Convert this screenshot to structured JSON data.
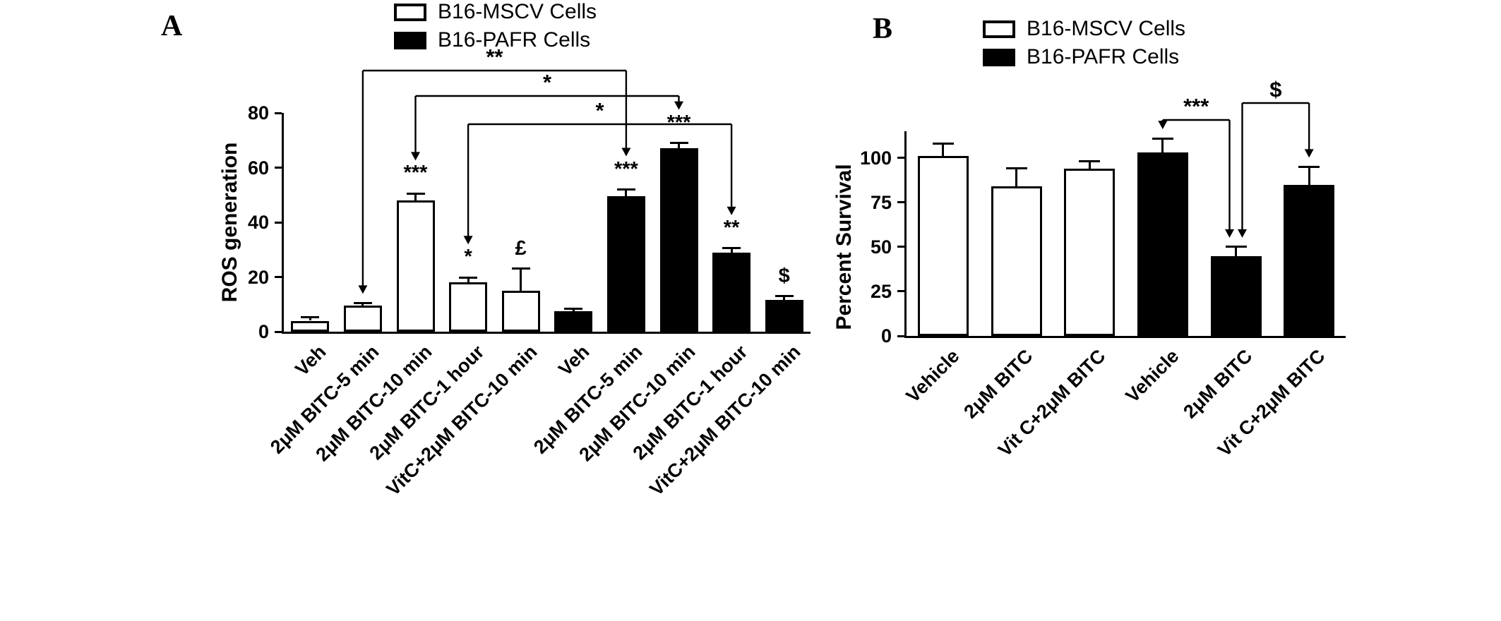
{
  "figure": {
    "background": "#ffffff",
    "text_color": "#000000"
  },
  "chart_data": [
    {
      "panel": "A",
      "type": "bar",
      "title": "",
      "xlabel": "",
      "ylabel": "ROS generation",
      "ylim": [
        0,
        80
      ],
      "yticks": [
        0,
        20,
        40,
        60,
        80
      ],
      "grid": false,
      "legend_position": "top",
      "bar_border_color": "#000000",
      "legend": [
        {
          "label": "B16-MSCV Cells",
          "fill": "#ffffff"
        },
        {
          "label": "B16-PAFR Cells",
          "fill": "#000000"
        }
      ],
      "bars": [
        {
          "category": "Veh",
          "series": "B16-MSCV Cells",
          "value": 4,
          "error": 1.2,
          "fill": "#ffffff",
          "sig": ""
        },
        {
          "category": "2μM BITC-5 min",
          "series": "B16-MSCV Cells",
          "value": 9.5,
          "error": 1,
          "fill": "#ffffff",
          "sig": ""
        },
        {
          "category": "2μM BITC-10 min",
          "series": "B16-MSCV Cells",
          "value": 48,
          "error": 2.5,
          "fill": "#ffffff",
          "sig": "***"
        },
        {
          "category": "2μM BITC-1 hour",
          "series": "B16-MSCV Cells",
          "value": 18,
          "error": 1.8,
          "fill": "#ffffff",
          "sig": "*"
        },
        {
          "category": "VitC+2μM BITC-10 min",
          "series": "B16-MSCV Cells",
          "value": 15,
          "error": 8,
          "fill": "#ffffff",
          "sig": "£"
        },
        {
          "category": "Veh",
          "series": "B16-PAFR Cells",
          "value": 7.5,
          "error": 0.8,
          "fill": "#000000",
          "sig": ""
        },
        {
          "category": "2μM BITC-5 min",
          "series": "B16-PAFR Cells",
          "value": 49.5,
          "error": 2.5,
          "fill": "#000000",
          "sig": "***"
        },
        {
          "category": "2μM BITC-10 min",
          "series": "B16-PAFR Cells",
          "value": 67,
          "error": 2,
          "fill": "#000000",
          "sig": "***"
        },
        {
          "category": "2μM BITC-1 hour",
          "series": "B16-PAFR Cells",
          "value": 29,
          "error": 1.5,
          "fill": "#000000",
          "sig": "**"
        },
        {
          "category": "VitC+2μM BITC-10 min",
          "series": "B16-PAFR Cells",
          "value": 11.5,
          "error": 1.5,
          "fill": "#000000",
          "sig": "$"
        }
      ],
      "brackets": [
        {
          "label": "**",
          "from": 1,
          "to": 6
        },
        {
          "label": "*",
          "from": 2,
          "to": 7
        },
        {
          "label": "*",
          "from": 3,
          "to": 8
        }
      ]
    },
    {
      "panel": "B",
      "type": "bar",
      "title": "",
      "xlabel": "",
      "ylabel": "Percent Survival",
      "ylim": [
        0,
        115
      ],
      "yticks": [
        0,
        25,
        50,
        75,
        100
      ],
      "grid": false,
      "legend_position": "top",
      "bar_border_color": "#000000",
      "legend": [
        {
          "label": "B16-MSCV Cells",
          "fill": "#ffffff"
        },
        {
          "label": "B16-PAFR Cells",
          "fill": "#000000"
        }
      ],
      "bars": [
        {
          "category": "Vehicle",
          "series": "B16-MSCV Cells",
          "value": 101,
          "error": 7,
          "fill": "#ffffff",
          "sig": ""
        },
        {
          "category": "2μM BITC",
          "series": "B16-MSCV Cells",
          "value": 84,
          "error": 10,
          "fill": "#ffffff",
          "sig": ""
        },
        {
          "category": "Vit C+2μM BITC",
          "series": "B16-MSCV Cells",
          "value": 94,
          "error": 4,
          "fill": "#ffffff",
          "sig": ""
        },
        {
          "category": "Vehicle",
          "series": "B16-PAFR Cells",
          "value": 103,
          "error": 8,
          "fill": "#000000",
          "sig": ""
        },
        {
          "category": "2μM BITC",
          "series": "B16-PAFR Cells",
          "value": 45,
          "error": 5,
          "fill": "#000000",
          "sig": ""
        },
        {
          "category": "Vit C+2μM BITC",
          "series": "B16-PAFR Cells",
          "value": 85,
          "error": 10,
          "fill": "#000000",
          "sig": ""
        }
      ],
      "brackets": [
        {
          "label": "***",
          "from": 3,
          "to": 4
        },
        {
          "label": "$",
          "from": 4,
          "to": 5
        }
      ]
    }
  ]
}
